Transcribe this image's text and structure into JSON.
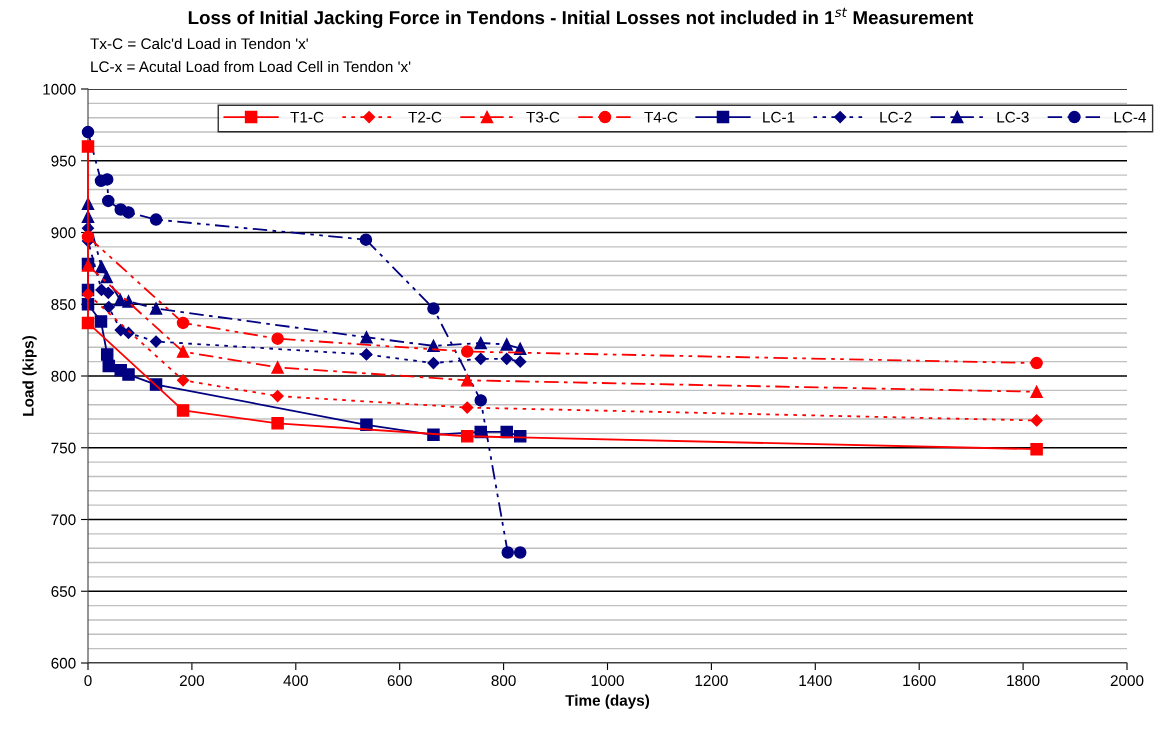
{
  "chart_data": {
    "type": "line",
    "title": "Loss of Initial Jacking Force in Tendons - Initial Losses not included in 1$^{st}$ Measurement",
    "annotations": [
      "Tx-C = Calc'd Load in Tendon 'x'",
      "LC-x = Acutal Load from Load Cell in Tendon 'x'"
    ],
    "xlabel": "Time (days)",
    "ylabel": "Load (kips)",
    "xlim": [
      0,
      2000
    ],
    "xticks": [
      0,
      200,
      400,
      600,
      800,
      1000,
      1200,
      1400,
      1600,
      1800,
      2000
    ],
    "ylim": [
      600,
      1000
    ],
    "yticks": [
      600,
      650,
      700,
      750,
      800,
      850,
      900,
      950,
      1000
    ],
    "grid": "y",
    "legend": "top",
    "series": [
      {
        "name": "T1-C",
        "color": "#ff0000",
        "marker": "square",
        "line_style": "solid",
        "x": [
          0,
          0,
          183,
          365,
          730,
          1826
        ],
        "values": [
          960,
          837,
          776,
          767,
          758,
          749
        ]
      },
      {
        "name": "T2-C",
        "color": "#ff0000",
        "marker": "diamond",
        "line_style": "dotted",
        "x": [
          0,
          183,
          365,
          730,
          1826
        ],
        "values": [
          857,
          797,
          786,
          778,
          769
        ]
      },
      {
        "name": "T3-C",
        "color": "#ff0000",
        "marker": "triangle",
        "line_style": "dashdot",
        "x": [
          0,
          183,
          365,
          730,
          1826
        ],
        "values": [
          877,
          817,
          806,
          797,
          789
        ]
      },
      {
        "name": "T4-C",
        "color": "#ff0000",
        "marker": "circle",
        "line_style": "dashed",
        "x": [
          0,
          183,
          365,
          730,
          1826
        ],
        "values": [
          897,
          837,
          826,
          817,
          809
        ]
      },
      {
        "name": "LC-1",
        "color": "#000080",
        "marker": "square",
        "line_style": "solid",
        "x": [
          0,
          0,
          0,
          25,
          37,
          40,
          63,
          78,
          131,
          536,
          665,
          756,
          806,
          832
        ],
        "values": [
          878,
          860,
          850,
          838,
          815,
          807,
          804,
          801,
          794,
          766,
          759,
          761,
          761,
          758
        ]
      },
      {
        "name": "LC-2",
        "color": "#000080",
        "marker": "diamond",
        "line_style": "dotted",
        "x": [
          0,
          0,
          26,
          39,
          40,
          63,
          78,
          131,
          536,
          665,
          756,
          806,
          832
        ],
        "values": [
          903,
          894,
          860,
          858,
          848,
          832,
          830,
          824,
          815,
          809,
          812,
          812,
          810
        ]
      },
      {
        "name": "LC-3",
        "color": "#000080",
        "marker": "triangle",
        "line_style": "dashdot",
        "x": [
          0,
          0,
          26,
          36,
          62,
          78,
          131,
          536,
          665,
          756,
          806,
          832
        ],
        "values": [
          920,
          911,
          876,
          869,
          853,
          852,
          847,
          827,
          821,
          823,
          822,
          819
        ]
      },
      {
        "name": "LC-4",
        "color": "#000080",
        "marker": "circle",
        "line_style": "dashed",
        "x": [
          0,
          25,
          37,
          39,
          63,
          78,
          131,
          535,
          665,
          756,
          808,
          832
        ],
        "values": [
          970,
          936,
          937,
          922,
          916,
          914,
          909,
          895,
          847,
          783,
          677,
          677
        ]
      }
    ]
  }
}
